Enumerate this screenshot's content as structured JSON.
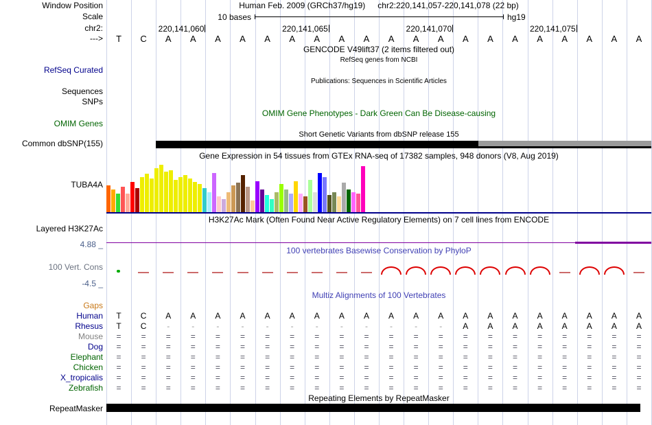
{
  "header": {
    "assembly_title": "Human Feb. 2009 (GRCh37/hg19)",
    "range_title": "chr2:220,141,057-220,141,078 (22 bp)"
  },
  "scale": {
    "text": "10 bases",
    "assembly": "hg19"
  },
  "labels": {
    "window_position": "Window Position",
    "scale": "Scale",
    "chrom": "chr2:",
    "strand": "--->",
    "refseq_curated": "RefSeq Curated",
    "sequences": "Sequences",
    "snps": "SNPs",
    "omim_genes": "OMIM Genes",
    "common_dbsnp": "Common dbSNP(155)",
    "gtex_gene": "TUBA4A",
    "layered_h3k27ac": "Layered H3K27Ac",
    "phylop_max": "4.88 _",
    "vert_cons": "100 Vert. Cons",
    "phylop_min": "-4.5 _",
    "gaps": "Gaps",
    "repeatmasker": "RepeatMasker"
  },
  "titles": {
    "gencode": "GENCODE V49lift37 (2 items filtered out)",
    "refseq_sub": "RefSeq genes from NCBI",
    "publications": "Publications: Sequences in Scientific Articles",
    "omim": "OMIM Gene Phenotypes - Dark Green Can Be Disease-causing",
    "dbsnp": "Short Genetic Variants from dbSNP release 155",
    "gtex": "Gene Expression in 54 tissues from GTEx RNA-seq of 17382 samples, 948 donors (V8, Aug 2019)",
    "h3k27ac": "H3K27Ac Mark (Often Found Near Active Regulatory Elements) on 7 cell lines from ENCODE",
    "phylop": "100 vertebrates Basewise Conservation by PhyloP",
    "multiz": "Multiz Alignments of 100 Vertebrates",
    "repeat": "Repeating Elements by RepeatMasker"
  },
  "ruler": {
    "ticks": [
      {
        "label": "220,141,060",
        "base_index": 3
      },
      {
        "label": "220,141,065",
        "base_index": 8
      },
      {
        "label": "220,141,070",
        "base_index": 13
      },
      {
        "label": "220,141,075",
        "base_index": 18
      }
    ]
  },
  "sequence": "TCAAAAAAAAAAAAAAAAAAAA",
  "phylop_marks": [
    "dot",
    "dash",
    "dash",
    "dash",
    "dash",
    "dash",
    "dash",
    "dash",
    "dash",
    "dash",
    "dash",
    "arc",
    "arc",
    "arc",
    "arc",
    "arc",
    "arc",
    "arc",
    "dash",
    "arc",
    "arc",
    "dash"
  ],
  "alignments": [
    {
      "species": "Human",
      "color": "#00008B",
      "row": "TCAAAAAAAAAAAAAAAAAAAA"
    },
    {
      "species": "Rhesus",
      "color": "#00008B",
      "row": "TC------------AAAAAAAA"
    },
    {
      "species": "Mouse",
      "color": "#808080",
      "row": "======================"
    },
    {
      "species": "Dog",
      "color": "#00008B",
      "row": "======================"
    },
    {
      "species": "Elephant",
      "color": "#006400",
      "row": "======================"
    },
    {
      "species": "Chicken",
      "color": "#006400",
      "row": "======================"
    },
    {
      "species": "X_tropicalis",
      "color": "#00008B",
      "row": "======================"
    },
    {
      "species": "Zebrafish",
      "color": "#006400",
      "row": "======================"
    }
  ],
  "chart_data": {
    "type": "bar",
    "gene": "TUBA4A",
    "note": "GTEx median expression across 54 tissues; bar colors are GTEx tissue colors, heights in px relative to 70 max",
    "bars": [
      {
        "c": "#FF6600",
        "h": 40
      },
      {
        "c": "#FFAA00",
        "h": 34
      },
      {
        "c": "#33DD33",
        "h": 28
      },
      {
        "c": "#FF5555",
        "h": 38
      },
      {
        "c": "#FFAA99",
        "h": 28
      },
      {
        "c": "#FF0000",
        "h": 45
      },
      {
        "c": "#AA0000",
        "h": 36
      },
      {
        "c": "#EEEE00",
        "h": 52
      },
      {
        "c": "#EEEE00",
        "h": 57
      },
      {
        "c": "#EEEE00",
        "h": 50
      },
      {
        "c": "#EEEE00",
        "h": 65
      },
      {
        "c": "#EEEE00",
        "h": 70
      },
      {
        "c": "#EEEE00",
        "h": 60
      },
      {
        "c": "#EEEE00",
        "h": 62
      },
      {
        "c": "#EEEE00",
        "h": 48
      },
      {
        "c": "#EEEE00",
        "h": 52
      },
      {
        "c": "#EEEE00",
        "h": 55
      },
      {
        "c": "#EEEE00",
        "h": 50
      },
      {
        "c": "#EEEE00",
        "h": 45
      },
      {
        "c": "#EEEE00",
        "h": 42
      },
      {
        "c": "#33CCCC",
        "h": 36
      },
      {
        "c": "#AAEEFF",
        "h": 30
      },
      {
        "c": "#CC66FF",
        "h": 58
      },
      {
        "c": "#FFCCCC",
        "h": 24
      },
      {
        "c": "#CCAADD",
        "h": 20
      },
      {
        "c": "#EEBB77",
        "h": 30
      },
      {
        "c": "#CC9955",
        "h": 40
      },
      {
        "c": "#8B7355",
        "h": 44
      },
      {
        "c": "#552200",
        "h": 55
      },
      {
        "c": "#BB9988",
        "h": 38
      },
      {
        "c": "#FFCC99",
        "h": 18
      },
      {
        "c": "#9900FF",
        "h": 46
      },
      {
        "c": "#660099",
        "h": 34
      },
      {
        "c": "#22FFDD",
        "h": 26
      },
      {
        "c": "#33FFC2",
        "h": 20
      },
      {
        "c": "#AABB66",
        "h": 30
      },
      {
        "c": "#99FF00",
        "h": 42
      },
      {
        "c": "#99BB88",
        "h": 34
      },
      {
        "c": "#AAAAFF",
        "h": 28
      },
      {
        "c": "#FFD700",
        "h": 46
      },
      {
        "c": "#FFAAFF",
        "h": 28
      },
      {
        "c": "#995522",
        "h": 24
      },
      {
        "c": "#AAFF99",
        "h": 48
      },
      {
        "c": "#DDDDDD",
        "h": 30
      },
      {
        "c": "#0000FF",
        "h": 58
      },
      {
        "c": "#7777FF",
        "h": 52
      },
      {
        "c": "#555522",
        "h": 26
      },
      {
        "c": "#778855",
        "h": 30
      },
      {
        "c": "#FFDD99",
        "h": 24
      },
      {
        "c": "#AAAAAA",
        "h": 44
      },
      {
        "c": "#006600",
        "h": 34
      },
      {
        "c": "#FF66FF",
        "h": 30
      },
      {
        "c": "#FF5599",
        "h": 28
      },
      {
        "c": "#FF00BB",
        "h": 68
      }
    ]
  }
}
